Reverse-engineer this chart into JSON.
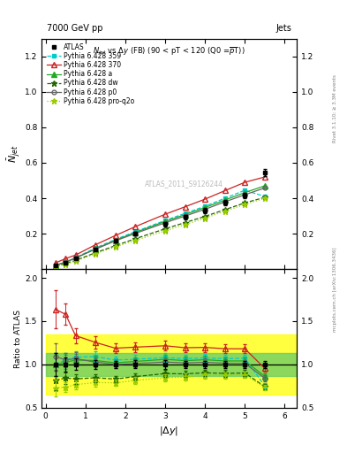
{
  "title_top": "7000 GeV pp",
  "title_right": "Jets",
  "ylabel_main": "$\\bar{N}_{jet}$",
  "ylabel_ratio": "Ratio to ATLAS",
  "xlabel": "$|\\Delta y|$",
  "watermark": "ATLAS_2011_S9126244",
  "x": [
    0.25,
    0.5,
    0.75,
    1.25,
    1.75,
    2.25,
    3.0,
    3.5,
    4.0,
    4.5,
    5.0,
    5.5
  ],
  "atlas_y": [
    0.022,
    0.038,
    0.06,
    0.11,
    0.16,
    0.2,
    0.255,
    0.295,
    0.33,
    0.375,
    0.415,
    0.545
  ],
  "atlas_yerr": [
    0.003,
    0.003,
    0.004,
    0.006,
    0.007,
    0.009,
    0.012,
    0.013,
    0.014,
    0.016,
    0.017,
    0.022
  ],
  "py359_y": [
    0.022,
    0.04,
    0.065,
    0.12,
    0.168,
    0.212,
    0.275,
    0.315,
    0.355,
    0.4,
    0.445,
    0.41
  ],
  "py370_y": [
    0.036,
    0.06,
    0.08,
    0.138,
    0.19,
    0.24,
    0.31,
    0.352,
    0.395,
    0.443,
    0.49,
    0.52
  ],
  "pya_y": [
    0.022,
    0.039,
    0.063,
    0.115,
    0.163,
    0.207,
    0.27,
    0.308,
    0.348,
    0.39,
    0.432,
    0.47
  ],
  "pydw_y": [
    0.018,
    0.032,
    0.05,
    0.093,
    0.133,
    0.172,
    0.228,
    0.263,
    0.298,
    0.336,
    0.374,
    0.405
  ],
  "pyp0_y": [
    0.024,
    0.04,
    0.064,
    0.113,
    0.16,
    0.202,
    0.262,
    0.3,
    0.338,
    0.38,
    0.42,
    0.458
  ],
  "pyq2o_y": [
    0.016,
    0.028,
    0.046,
    0.087,
    0.126,
    0.163,
    0.216,
    0.252,
    0.288,
    0.328,
    0.365,
    0.4
  ],
  "ylim_main": [
    0.0,
    1.3
  ],
  "ylim_ratio": [
    0.5,
    2.1
  ],
  "color_359": "#00CCCC",
  "color_370": "#CC2222",
  "color_a": "#22AA22",
  "color_dw": "#226600",
  "color_p0": "#666666",
  "color_q2o": "#99CC00",
  "band_green_lo": 0.87,
  "band_green_hi": 1.13,
  "band_yellow_lo": 0.65,
  "band_yellow_hi": 1.35
}
